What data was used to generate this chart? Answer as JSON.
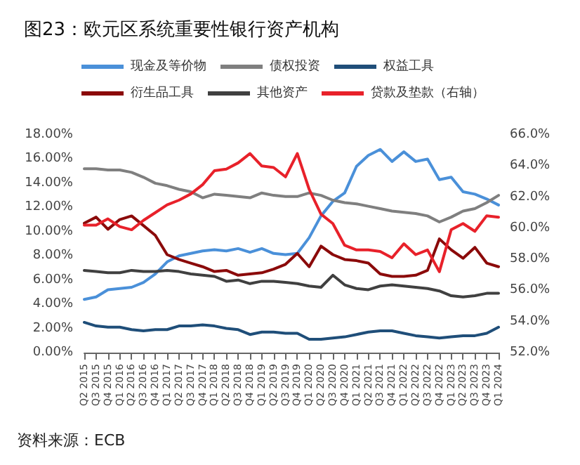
{
  "chart_data": {
    "type": "line",
    "title": "图23：欧元区系统重要性银行资产机构",
    "categories": [
      "Q2 2015",
      "Q3 2015",
      "Q4 2015",
      "Q1 2016",
      "Q2 2016",
      "Q3 2016",
      "Q4 2016",
      "Q1 2017",
      "Q2 2017",
      "Q3 2017",
      "Q4 2017",
      "Q1 2018",
      "Q2 2018",
      "Q3 2018",
      "Q4 2018",
      "Q1 2019",
      "Q2 2019",
      "Q3 2019",
      "Q4 2019",
      "Q1 2020",
      "Q2 2020",
      "Q3 2020",
      "Q4 2020",
      "Q1 2021",
      "Q2 2021",
      "Q3 2021",
      "Q4 2021",
      "Q1 2022",
      "Q2 2022",
      "Q3 2022",
      "Q4 2022",
      "Q1 2023",
      "Q2 2023",
      "Q3 2023",
      "Q4 2023",
      "Q1 2024"
    ],
    "series": [
      {
        "name": "现金及等价物",
        "color": "#4a90d9",
        "values": [
          4.4,
          4.6,
          5.2,
          5.3,
          5.4,
          5.8,
          6.5,
          7.5,
          8.0,
          8.2,
          8.4,
          8.5,
          8.4,
          8.6,
          8.3,
          8.6,
          8.2,
          8.1,
          8.2,
          9.5,
          11.3,
          12.5,
          13.2,
          15.4,
          16.3,
          16.8,
          15.8,
          16.6,
          15.8,
          16.0,
          14.3,
          14.5,
          13.3,
          13.1,
          12.7,
          12.2
        ]
      },
      {
        "name": "债权投资",
        "color": "#7f7f7f",
        "values": [
          15.2,
          15.2,
          15.1,
          15.1,
          14.9,
          14.5,
          14.0,
          13.8,
          13.5,
          13.3,
          12.8,
          13.1,
          13.0,
          12.9,
          12.8,
          13.2,
          13.0,
          12.9,
          12.9,
          13.2,
          13.0,
          12.6,
          12.4,
          12.3,
          12.1,
          11.9,
          11.7,
          11.6,
          11.5,
          11.3,
          10.8,
          11.2,
          11.7,
          11.9,
          12.4,
          13.0
        ]
      },
      {
        "name": "权益工具",
        "color": "#1f4e79",
        "values": [
          2.5,
          2.2,
          2.1,
          2.1,
          1.9,
          1.8,
          1.9,
          1.9,
          2.2,
          2.2,
          2.3,
          2.2,
          2.0,
          1.9,
          1.5,
          1.7,
          1.7,
          1.6,
          1.6,
          1.1,
          1.1,
          1.2,
          1.3,
          1.5,
          1.7,
          1.8,
          1.8,
          1.6,
          1.4,
          1.3,
          1.2,
          1.3,
          1.4,
          1.4,
          1.6,
          2.1
        ]
      },
      {
        "name": "衍生品工具",
        "color": "#8b0a0a",
        "values": [
          10.7,
          11.2,
          10.2,
          11.0,
          11.3,
          10.5,
          9.7,
          8.1,
          7.7,
          7.4,
          7.1,
          6.7,
          6.8,
          6.4,
          6.5,
          6.6,
          6.9,
          7.3,
          8.2,
          7.1,
          8.8,
          8.1,
          7.7,
          7.6,
          7.4,
          6.5,
          6.3,
          6.3,
          6.4,
          6.8,
          9.4,
          8.5,
          7.8,
          8.7,
          7.4,
          7.1
        ]
      },
      {
        "name": "其他资产",
        "color": "#404040",
        "values": [
          6.8,
          6.7,
          6.6,
          6.6,
          6.8,
          6.7,
          6.7,
          6.8,
          6.7,
          6.5,
          6.4,
          6.3,
          5.9,
          6.0,
          5.7,
          5.9,
          5.9,
          5.8,
          5.7,
          5.5,
          5.4,
          6.4,
          5.6,
          5.3,
          5.2,
          5.5,
          5.6,
          5.5,
          5.4,
          5.3,
          5.1,
          4.7,
          4.6,
          4.7,
          4.9,
          4.9
        ]
      },
      {
        "name": "贷款及垫款（右轴）",
        "color": "#e8212a",
        "axis": "y2",
        "values": [
          60.2,
          60.2,
          60.6,
          60.1,
          59.9,
          60.5,
          61.0,
          61.5,
          61.8,
          62.2,
          62.8,
          63.7,
          63.8,
          64.2,
          64.8,
          64.0,
          63.9,
          63.3,
          64.8,
          62.5,
          60.9,
          60.3,
          58.9,
          58.6,
          58.6,
          58.5,
          58.1,
          59.0,
          58.3,
          58.6,
          57.2,
          59.9,
          60.3,
          59.8,
          60.8,
          60.7
        ]
      }
    ],
    "ylim": [
      0,
      18
    ],
    "yticks": [
      {
        "value": 0,
        "label": "0.00%"
      },
      {
        "value": 2,
        "label": "2.00%"
      },
      {
        "value": 4,
        "label": "4.00%"
      },
      {
        "value": 6,
        "label": "6.00%"
      },
      {
        "value": 8,
        "label": "8.00%"
      },
      {
        "value": 10,
        "label": "10.00%"
      },
      {
        "value": 12,
        "label": "12.00%"
      },
      {
        "value": 14,
        "label": "14.00%"
      },
      {
        "value": 16,
        "label": "16.00%"
      },
      {
        "value": 18,
        "label": "18.00%"
      }
    ],
    "y2lim": [
      52,
      66
    ],
    "y2ticks": [
      {
        "value": 52,
        "label": "52.0%"
      },
      {
        "value": 54,
        "label": "54.0%"
      },
      {
        "value": 56,
        "label": "56.0%"
      },
      {
        "value": 58,
        "label": "58.0%"
      },
      {
        "value": 60,
        "label": "60.0%"
      },
      {
        "value": 62,
        "label": "62.0%"
      },
      {
        "value": 64,
        "label": "64.0%"
      },
      {
        "value": 66,
        "label": "66.0%"
      }
    ],
    "legend": "top",
    "marker": "none",
    "line_style": "solid",
    "annotations": [
      "资料来源：ECB"
    ]
  }
}
